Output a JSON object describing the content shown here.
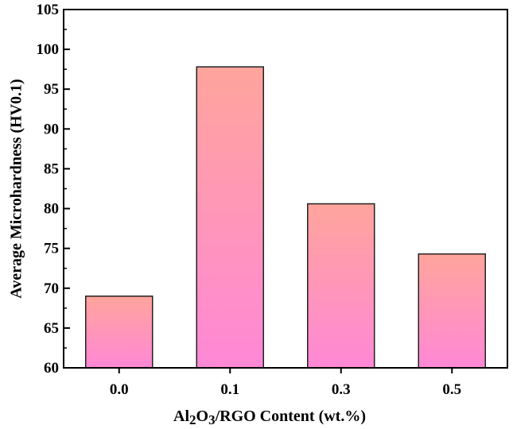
{
  "chart_data": {
    "type": "bar",
    "categories": [
      "0.0",
      "0.1",
      "0.3",
      "0.5"
    ],
    "values": [
      69.0,
      97.8,
      80.6,
      74.3
    ],
    "title": "",
    "xlabel": {
      "parts": [
        {
          "text": "Al",
          "sub": false
        },
        {
          "text": "2",
          "sub": true
        },
        {
          "text": "O",
          "sub": false
        },
        {
          "text": "3",
          "sub": true
        },
        {
          "text": "/RGO Content (wt.%)",
          "sub": false
        }
      ]
    },
    "ylabel": "Average Microhardness (HV0.1)",
    "ylim": [
      60,
      105
    ],
    "yticks": [
      "60",
      "65",
      "70",
      "75",
      "80",
      "85",
      "90",
      "95",
      "100",
      "105"
    ],
    "grid": false,
    "legend": "none",
    "colors": {
      "bar_top": "#ffa49c",
      "bar_bottom": "#ff88d6",
      "bar_stroke": "#222222",
      "axis": "#000000"
    }
  }
}
